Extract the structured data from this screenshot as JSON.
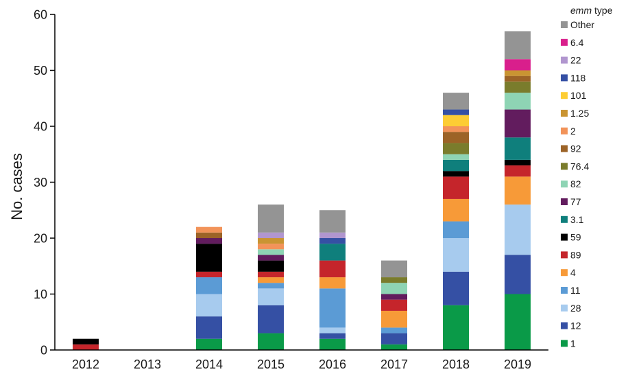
{
  "chart_data": {
    "type": "bar",
    "stacked": true,
    "title": "",
    "xlabel": "",
    "ylabel": "No. cases",
    "ylim": [
      0,
      60
    ],
    "yticks": [
      0,
      10,
      20,
      30,
      40,
      50,
      60
    ],
    "grid": false,
    "legend": {
      "title_italic": "emm",
      "title_rest": " type",
      "placement": "right"
    },
    "categories": [
      "2012",
      "2013",
      "2014",
      "2015",
      "2016",
      "2017",
      "2018",
      "2019"
    ],
    "series": [
      {
        "name": "1",
        "color": "#0a9a48",
        "values": [
          0,
          0,
          2,
          3,
          2,
          1,
          8,
          10
        ]
      },
      {
        "name": "12",
        "color": "#3550a4",
        "values": [
          0,
          0,
          4,
          5,
          1,
          2,
          6,
          7
        ]
      },
      {
        "name": "28",
        "color": "#a7cbee",
        "values": [
          0,
          0,
          4,
          3,
          1,
          0,
          6,
          9
        ]
      },
      {
        "name": "11",
        "color": "#5b9bd5",
        "values": [
          0,
          0,
          3,
          1,
          7,
          1,
          3,
          0
        ]
      },
      {
        "name": "4",
        "color": "#f79a38",
        "values": [
          0,
          0,
          0,
          1,
          2,
          3,
          4,
          5
        ]
      },
      {
        "name": "89",
        "color": "#c5252b",
        "values": [
          1,
          0,
          1,
          1,
          3,
          2,
          4,
          2
        ]
      },
      {
        "name": "59",
        "color": "#000000",
        "values": [
          1,
          0,
          5,
          2,
          0,
          0,
          1,
          1
        ]
      },
      {
        "name": "3.1",
        "color": "#0f7f7c",
        "values": [
          0,
          0,
          0,
          0,
          3,
          0,
          2,
          4
        ]
      },
      {
        "name": "77",
        "color": "#621c5e",
        "values": [
          0,
          0,
          1,
          1,
          0,
          1,
          0,
          5
        ]
      },
      {
        "name": "82",
        "color": "#8ed4b4",
        "values": [
          0,
          0,
          0,
          1,
          0,
          2,
          1,
          3
        ]
      },
      {
        "name": "76.4",
        "color": "#7a7c2c",
        "values": [
          0,
          0,
          0,
          0,
          0,
          1,
          2,
          2
        ]
      },
      {
        "name": "92",
        "color": "#9c6327",
        "values": [
          0,
          0,
          1,
          0,
          0,
          0,
          2,
          1
        ]
      },
      {
        "name": "2",
        "color": "#f29359",
        "values": [
          0,
          0,
          1,
          1,
          0,
          0,
          1,
          0
        ]
      },
      {
        "name": "1.25",
        "color": "#c99432",
        "values": [
          0,
          0,
          0,
          1,
          0,
          0,
          0,
          1
        ]
      },
      {
        "name": "101",
        "color": "#fdcd34",
        "values": [
          0,
          0,
          0,
          0,
          0,
          0,
          2,
          0
        ]
      },
      {
        "name": "118",
        "color": "#3550a4",
        "values": [
          0,
          0,
          0,
          0,
          1,
          0,
          1,
          0
        ]
      },
      {
        "name": "22",
        "color": "#b196cf",
        "values": [
          0,
          0,
          0,
          1,
          1,
          0,
          0,
          0
        ]
      },
      {
        "name": "6.4",
        "color": "#d91f8c",
        "values": [
          0,
          0,
          0,
          0,
          0,
          0,
          0,
          2
        ]
      },
      {
        "name": "Other",
        "color": "#949494",
        "values": [
          0,
          0,
          0,
          5,
          4,
          3,
          3,
          5
        ]
      }
    ]
  }
}
